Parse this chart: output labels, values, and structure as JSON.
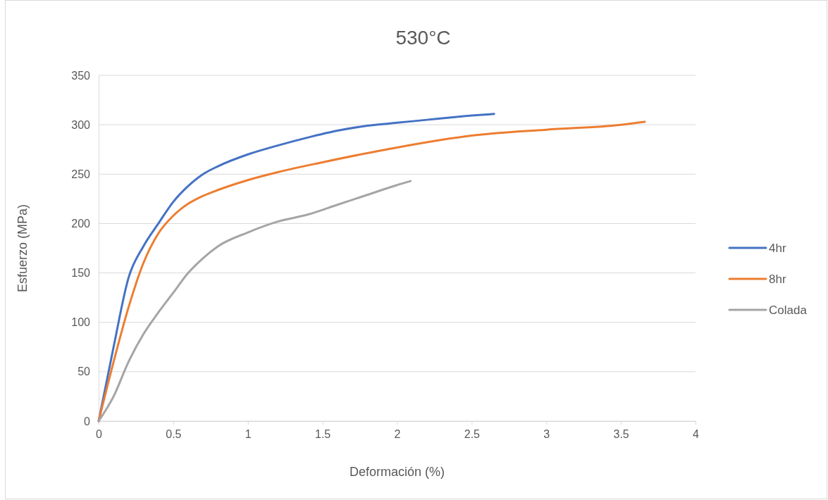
{
  "chart_data": {
    "type": "line",
    "title": "530°C",
    "xlabel": "Deformación (%)",
    "ylabel": "Esfuerzo (MPa)",
    "xlim": [
      0,
      4
    ],
    "xticks": [
      0,
      0.5,
      1,
      1.5,
      2,
      2.5,
      3,
      3.5,
      4
    ],
    "ylim": [
      0,
      350
    ],
    "yticks": [
      0,
      50,
      100,
      150,
      200,
      250,
      300,
      350
    ],
    "grid": "y",
    "legend": "right",
    "marker": "none",
    "line_style": "solid",
    "series": [
      {
        "name": "4hr",
        "color": "#4472c4",
        "x": [
          0,
          0.1,
          0.2,
          0.3,
          0.4,
          0.5,
          0.6,
          0.7,
          0.8,
          1.0,
          1.2,
          1.4,
          1.6,
          1.8,
          2.0,
          2.2,
          2.4,
          2.65
        ],
        "values": [
          0,
          75,
          145,
          177,
          200,
          222,
          238,
          250,
          258,
          270,
          279,
          287,
          294,
          299,
          302,
          305,
          308,
          311
        ]
      },
      {
        "name": "8hr",
        "color": "#ed7d31",
        "x": [
          0,
          0.1,
          0.2,
          0.3,
          0.4,
          0.5,
          0.6,
          0.7,
          0.8,
          1.0,
          1.2,
          1.5,
          2.0,
          2.5,
          3.0,
          3.5,
          3.66
        ],
        "values": [
          0,
          60,
          115,
          160,
          190,
          208,
          220,
          228,
          234,
          244,
          252,
          262,
          277,
          289,
          295,
          300,
          303
        ]
      },
      {
        "name": "Colada",
        "color": "#a5a5a5",
        "x": [
          0,
          0.1,
          0.2,
          0.3,
          0.4,
          0.5,
          0.6,
          0.7,
          0.8,
          1.0,
          1.2,
          1.4,
          1.6,
          1.8,
          2.0,
          2.09
        ],
        "values": [
          0,
          25,
          60,
          88,
          110,
          130,
          150,
          165,
          177,
          191,
          202,
          209,
          219,
          229,
          239,
          243
        ]
      }
    ]
  }
}
